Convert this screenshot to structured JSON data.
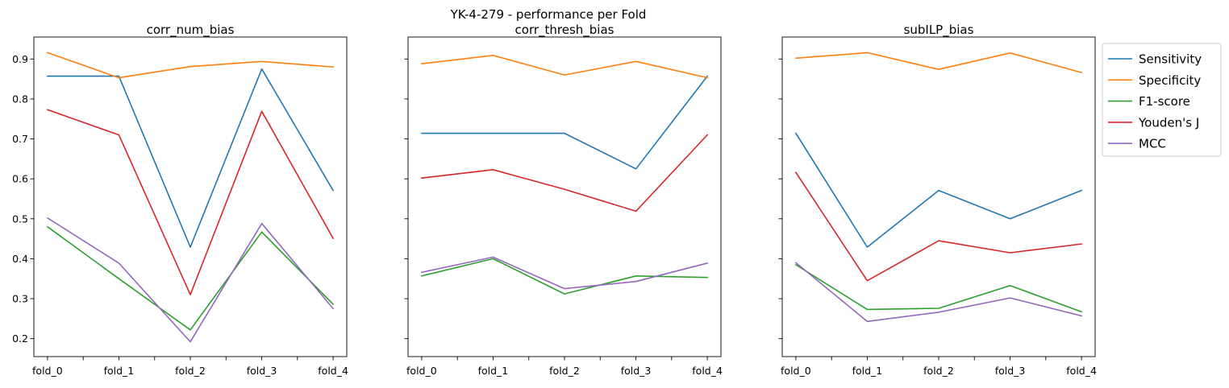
{
  "figure": {
    "suptitle": "YK-4-279 - performance per Fold"
  },
  "chart_data": {
    "type": "line",
    "shared_y": true,
    "ylim": [
      0.155,
      0.955
    ],
    "yticks": [
      0.2,
      0.3,
      0.4,
      0.5,
      0.6,
      0.7,
      0.8,
      0.9
    ],
    "categories": [
      "fold_0",
      "fold_1",
      "fold_2",
      "fold_3",
      "fold_4"
    ],
    "legend": {
      "placement": "outside-right-top",
      "entries": [
        {
          "name": "Sensitivity",
          "color": "#1f77b4"
        },
        {
          "name": "Specificity",
          "color": "#ff7f0e"
        },
        {
          "name": "F1-score",
          "color": "#2ca02c"
        },
        {
          "name": "Youden's J",
          "color": "#d62728"
        },
        {
          "name": "MCC",
          "color": "#9467bd"
        }
      ]
    },
    "panels": [
      {
        "title": "corr_num_bias",
        "series": [
          {
            "name": "Sensitivity",
            "values": [
              0.857,
              0.857,
              0.429,
              0.875,
              0.571
            ]
          },
          {
            "name": "Specificity",
            "values": [
              0.916,
              0.853,
              0.881,
              0.894,
              0.88
            ]
          },
          {
            "name": "F1-score",
            "values": [
              0.48,
              0.35,
              0.222,
              0.467,
              0.286
            ]
          },
          {
            "name": "Youden's J",
            "values": [
              0.773,
              0.71,
              0.31,
              0.769,
              0.451
            ]
          },
          {
            "name": "MCC",
            "values": [
              0.502,
              0.389,
              0.192,
              0.488,
              0.275
            ]
          }
        ]
      },
      {
        "title": "corr_thresh_bias",
        "series": [
          {
            "name": "Sensitivity",
            "values": [
              0.714,
              0.714,
              0.714,
              0.625,
              0.857
            ]
          },
          {
            "name": "Specificity",
            "values": [
              0.888,
              0.909,
              0.86,
              0.894,
              0.853
            ]
          },
          {
            "name": "F1-score",
            "values": [
              0.357,
              0.4,
              0.312,
              0.357,
              0.353
            ]
          },
          {
            "name": "Youden's J",
            "values": [
              0.602,
              0.623,
              0.574,
              0.519,
              0.71
            ]
          },
          {
            "name": "MCC",
            "values": [
              0.366,
              0.404,
              0.325,
              0.343,
              0.389
            ]
          }
        ]
      },
      {
        "title": "subILP_bias",
        "series": [
          {
            "name": "Sensitivity",
            "values": [
              0.714,
              0.429,
              0.571,
              0.5,
              0.571
            ]
          },
          {
            "name": "Specificity",
            "values": [
              0.902,
              0.916,
              0.874,
              0.915,
              0.866
            ]
          },
          {
            "name": "F1-score",
            "values": [
              0.385,
              0.273,
              0.276,
              0.333,
              0.267
            ]
          },
          {
            "name": "Youden's J",
            "values": [
              0.616,
              0.345,
              0.445,
              0.415,
              0.437
            ]
          },
          {
            "name": "MCC",
            "values": [
              0.39,
              0.243,
              0.266,
              0.302,
              0.257
            ]
          }
        ]
      }
    ]
  }
}
